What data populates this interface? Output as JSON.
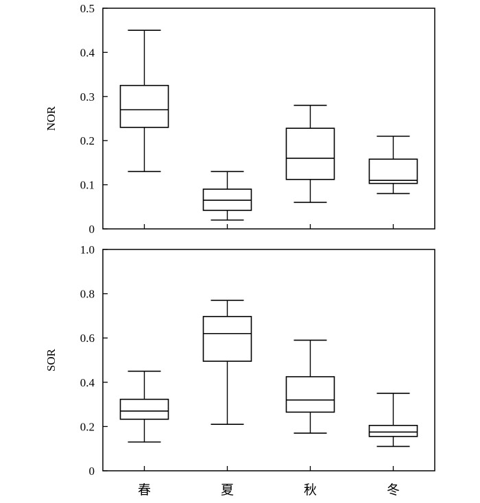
{
  "chart_data": [
    {
      "type": "box",
      "ylabel": "NOR",
      "ylim": [
        0,
        0.5
      ],
      "yticks": [
        "0",
        "0.1",
        "0.2",
        "0.3",
        "0.4",
        "0.5"
      ],
      "categories": [
        "春",
        "夏",
        "秋",
        "冬"
      ],
      "show_x_labels": false,
      "boxes": [
        {
          "category": "春",
          "min": 0.13,
          "q1": 0.23,
          "median": 0.27,
          "q3": 0.325,
          "max": 0.45
        },
        {
          "category": "夏",
          "min": 0.02,
          "q1": 0.042,
          "median": 0.065,
          "q3": 0.09,
          "max": 0.13
        },
        {
          "category": "秋",
          "min": 0.06,
          "q1": 0.112,
          "median": 0.16,
          "q3": 0.228,
          "max": 0.28
        },
        {
          "category": "冬",
          "min": 0.08,
          "q1": 0.103,
          "median": 0.11,
          "q3": 0.158,
          "max": 0.21
        }
      ]
    },
    {
      "type": "box",
      "ylabel": "SOR",
      "ylim": [
        0,
        1.0
      ],
      "yticks": [
        "0",
        "0.2",
        "0.4",
        "0.6",
        "0.8",
        "1.0"
      ],
      "categories": [
        "春",
        "夏",
        "秋",
        "冬"
      ],
      "show_x_labels": true,
      "boxes": [
        {
          "category": "春",
          "min": 0.13,
          "q1": 0.233,
          "median": 0.27,
          "q3": 0.323,
          "max": 0.45
        },
        {
          "category": "夏",
          "min": 0.21,
          "q1": 0.495,
          "median": 0.62,
          "q3": 0.697,
          "max": 0.77
        },
        {
          "category": "秋",
          "min": 0.17,
          "q1": 0.265,
          "median": 0.32,
          "q3": 0.425,
          "max": 0.59
        },
        {
          "category": "冬",
          "min": 0.11,
          "q1": 0.155,
          "median": 0.175,
          "q3": 0.205,
          "max": 0.35
        }
      ]
    }
  ]
}
